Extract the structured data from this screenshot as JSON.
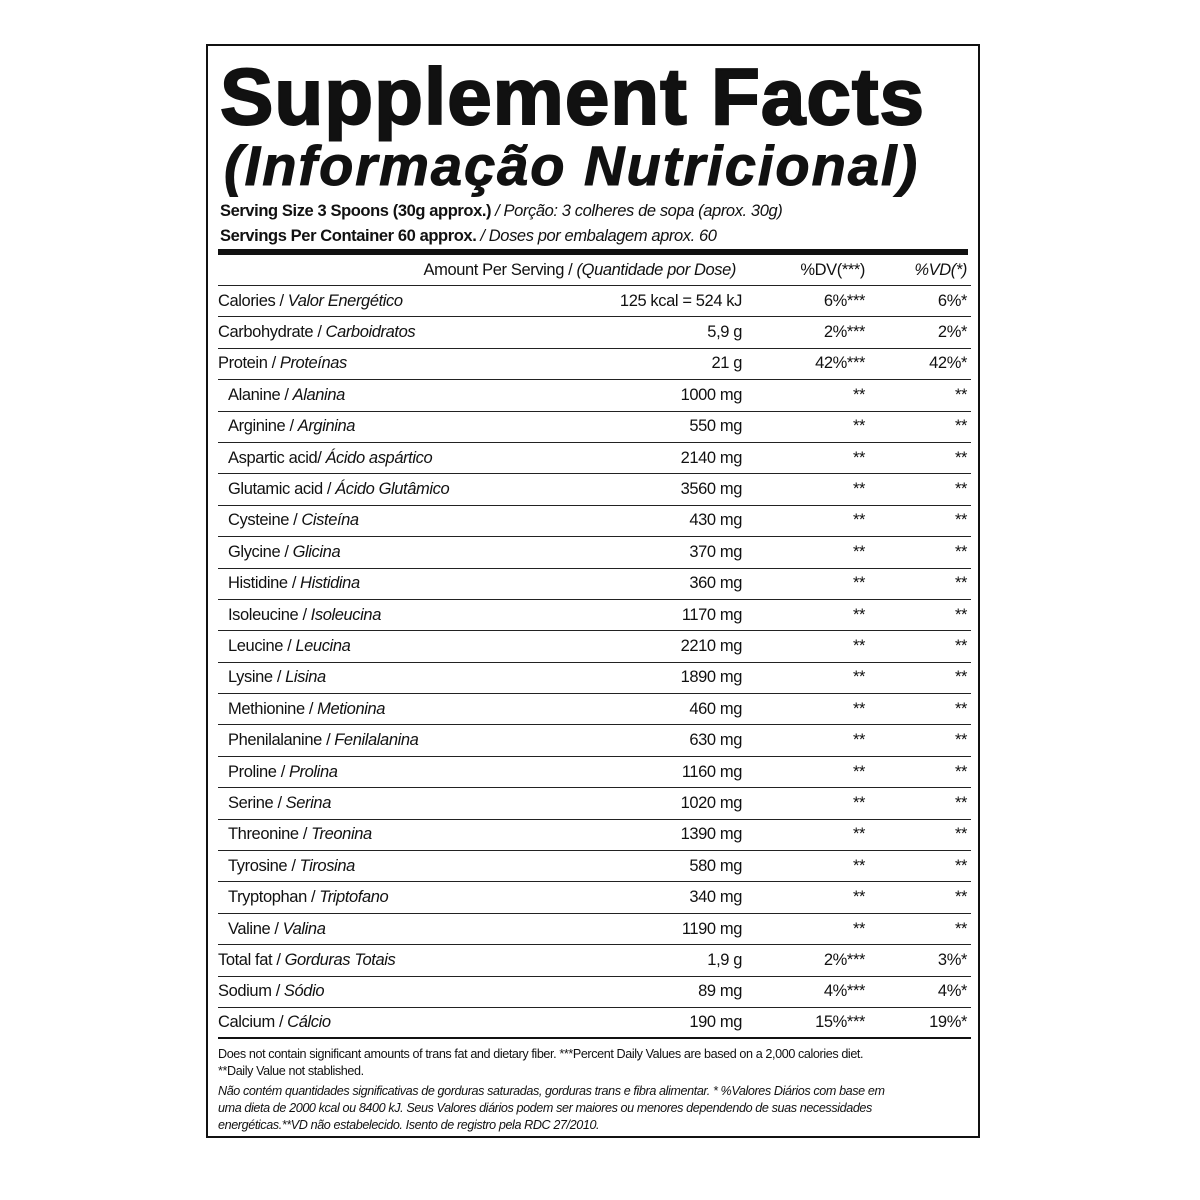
{
  "header": {
    "title": "Supplement Facts",
    "subtitle": "(Informação Nutricional)"
  },
  "serving": {
    "size_en": "Serving Size 3 Spoons (30g approx.)",
    "size_pt": "/ Porção: 3 colheres de sopa (aprox. 30g)",
    "per_container_en": "Servings Per Container 60 approx.",
    "per_container_pt": "/ Doses por embalagem aprox. 60"
  },
  "table": {
    "columns": {
      "amount_en": "Amount Per Serving /",
      "amount_pt": "(Quantidade por Dose)",
      "dv": "%DV(***)",
      "vd": "%VD(*)"
    },
    "main_rows": [
      {
        "en": "Calories /",
        "pt": "Valor Energético",
        "amount": "125 kcal = 524 kJ",
        "dv": "6%***",
        "vd": "6%*"
      },
      {
        "en": "Carbohydrate /",
        "pt": "Carboidratos",
        "amount": "5,9 g",
        "dv": "2%***",
        "vd": "2%*"
      },
      {
        "en": "Protein /",
        "pt": "Proteínas",
        "amount": "21 g",
        "dv": "42%***",
        "vd": "42%*"
      }
    ],
    "amino_acids": [
      {
        "en": "Alanine /",
        "pt": "Alanina",
        "amount": "1000 mg",
        "dv": "**",
        "vd": "**"
      },
      {
        "en": "Arginine /",
        "pt": "Arginina",
        "amount": "550 mg",
        "dv": "**",
        "vd": "**"
      },
      {
        "en": "Aspartic acid/",
        "pt": "Ácido aspártico",
        "amount": "2140 mg",
        "dv": "**",
        "vd": "**"
      },
      {
        "en": "Glutamic acid /",
        "pt": "Ácido Glutâmico",
        "amount": "3560 mg",
        "dv": "**",
        "vd": "**"
      },
      {
        "en": "Cysteine /",
        "pt": "Cisteína",
        "amount": "430 mg",
        "dv": "**",
        "vd": "**"
      },
      {
        "en": "Glycine /",
        "pt": "Glicina",
        "amount": "370 mg",
        "dv": "**",
        "vd": "**"
      },
      {
        "en": "Histidine /",
        "pt": "Histidina",
        "amount": "360 mg",
        "dv": "**",
        "vd": "**"
      },
      {
        "en": "Isoleucine /",
        "pt": "Isoleucina",
        "amount": "1170 mg",
        "dv": "**",
        "vd": "**"
      },
      {
        "en": "Leucine /",
        "pt": "Leucina",
        "amount": "2210 mg",
        "dv": "**",
        "vd": "**"
      },
      {
        "en": "Lysine /",
        "pt": "Lisina",
        "amount": "1890 mg",
        "dv": "**",
        "vd": "**"
      },
      {
        "en": "Methionine /",
        "pt": "Metionina",
        "amount": "460 mg",
        "dv": "**",
        "vd": "**"
      },
      {
        "en": "Phenilalanine /",
        "pt": "Fenilalanina",
        "amount": "630 mg",
        "dv": "**",
        "vd": "**"
      },
      {
        "en": "Proline /",
        "pt": "Prolina",
        "amount": "1160 mg",
        "dv": "**",
        "vd": "**"
      },
      {
        "en": "Serine /",
        "pt": "Serina",
        "amount": "1020 mg",
        "dv": "**",
        "vd": "**"
      },
      {
        "en": "Threonine /",
        "pt": "Treonina",
        "amount": "1390 mg",
        "dv": "**",
        "vd": "**"
      },
      {
        "en": "Tyrosine /",
        "pt": "Tirosina",
        "amount": "580 mg",
        "dv": "**",
        "vd": "**"
      },
      {
        "en": "Tryptophan /",
        "pt": "Triptofano",
        "amount": "340 mg",
        "dv": "**",
        "vd": "**"
      },
      {
        "en": "Valine /",
        "pt": "Valina",
        "amount": "1190 mg",
        "dv": "**",
        "vd": "**"
      }
    ],
    "other_rows": [
      {
        "en": "Total fat /",
        "pt": "Gorduras Totais",
        "amount": "1,9 g",
        "dv": "2%***",
        "vd": "3%*"
      },
      {
        "en": "Sodium /",
        "pt": "Sódio",
        "amount": "89 mg",
        "dv": "4%***",
        "vd": "4%*"
      },
      {
        "en": "Calcium /",
        "pt": "Cálcio",
        "amount": "190 mg",
        "dv": "15%***",
        "vd": "19%*"
      }
    ]
  },
  "footer": {
    "notes_en": [
      "Does not contain significant amounts of trans fat and dietary fiber. ***Percent Daily Values are based on a 2,000 calories diet.",
      "**Daily Value not stablished."
    ],
    "notes_pt": [
      "Não contém quantidades significativas de gorduras saturadas, gorduras trans e fibra alimentar. * %Valores Diários com base em",
      "uma dieta de 2000 kcal ou 8400 kJ. Seus Valores diários podem ser maiores ou menores dependendo de suas necessidades",
      "energéticas.**VD não estabelecido. Isento de registro pela RDC 27/2010."
    ]
  }
}
